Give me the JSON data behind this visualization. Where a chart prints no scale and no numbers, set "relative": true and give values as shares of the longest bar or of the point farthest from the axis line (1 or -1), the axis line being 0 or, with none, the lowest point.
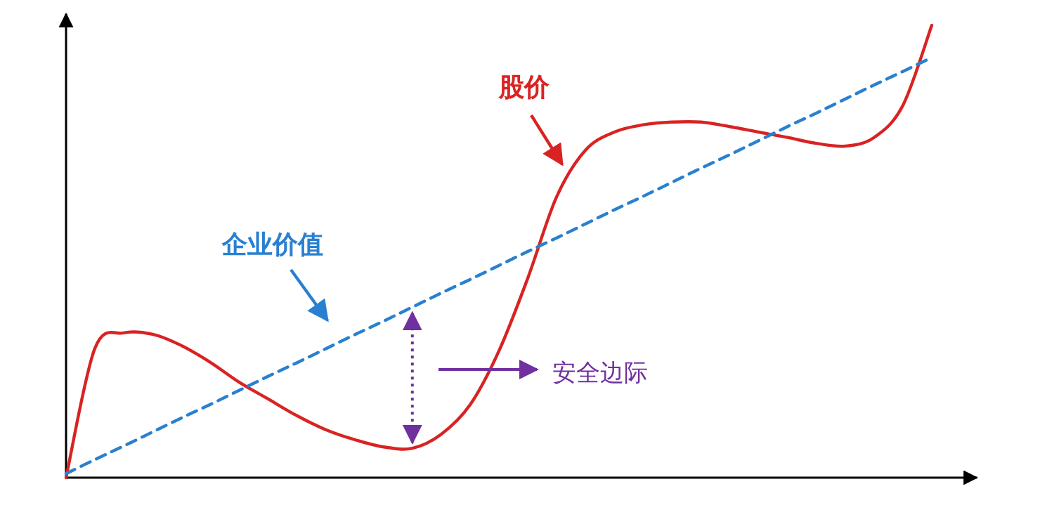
{
  "chart_data": {
    "type": "line",
    "relative": true,
    "grid": false,
    "categories": [
      null,
      null,
      null,
      null,
      null,
      null,
      null,
      null,
      null,
      null,
      null,
      null,
      null,
      null,
      null,
      null,
      null,
      null,
      null,
      null,
      null,
      null,
      null,
      null,
      null,
      null,
      null,
      null,
      null,
      null,
      null
    ],
    "series": [
      {
        "name": "股价",
        "color": "#d92323",
        "line_style": "solid",
        "values": [
          0,
          0.286,
          0.32,
          0.317,
          0.292,
          0.255,
          0.211,
          0.174,
          0.137,
          0.106,
          0.084,
          0.068,
          0.065,
          0.096,
          0.161,
          0.28,
          0.441,
          0.621,
          0.724,
          0.764,
          0.78,
          0.786,
          0.786,
          0.776,
          0.764,
          0.752,
          0.739,
          0.733,
          0.752,
          0.823,
          1.0
        ]
      },
      {
        "name": "企业价值",
        "color": "#2a80d0",
        "line_style": "dashed",
        "values": [
          0.009,
          0.04,
          0.07,
          0.101,
          0.132,
          0.162,
          0.193,
          0.224,
          0.254,
          0.285,
          0.316,
          0.346,
          0.377,
          0.408,
          0.438,
          0.469,
          0.5,
          0.53,
          0.561,
          0.592,
          0.622,
          0.653,
          0.684,
          0.714,
          0.745,
          0.776,
          0.806,
          0.837,
          0.868,
          0.898,
          0.929
        ]
      }
    ],
    "annotations": [
      "安全边际"
    ]
  }
}
